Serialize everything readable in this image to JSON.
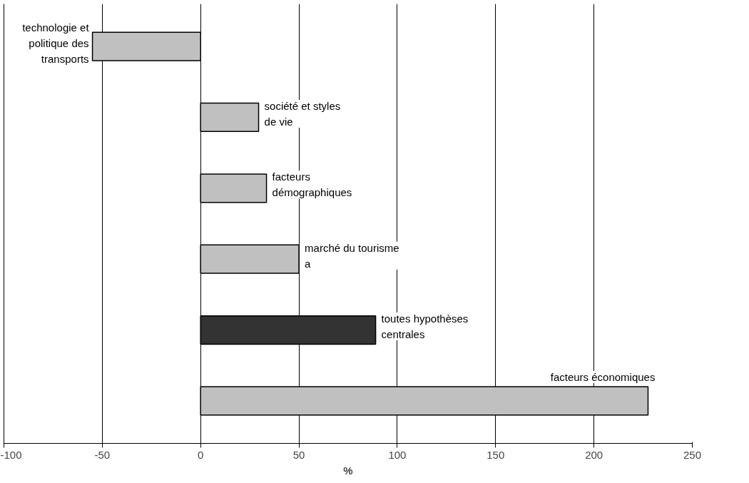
{
  "chart_data": {
    "type": "bar",
    "orientation": "horizontal",
    "xlabel": "%",
    "categories": [
      "technologie et politique des transports",
      "société et styles de vie",
      "facteurs démographiques",
      "marché du tourisme a",
      "toutes hypothèses centrales",
      "facteurs économiques"
    ],
    "values": [
      -55,
      29.5,
      33.5,
      50,
      89,
      227.5
    ],
    "colors": [
      "#c0c0c0",
      "#c0c0c0",
      "#c0c0c0",
      "#c0c0c0",
      "#333333",
      "#c0c0c0"
    ],
    "xlim": [
      -100,
      250
    ],
    "xticks": [
      -100,
      -50,
      0,
      50,
      100,
      150,
      200,
      250
    ],
    "grid": "x",
    "tick_labels": "x"
  }
}
